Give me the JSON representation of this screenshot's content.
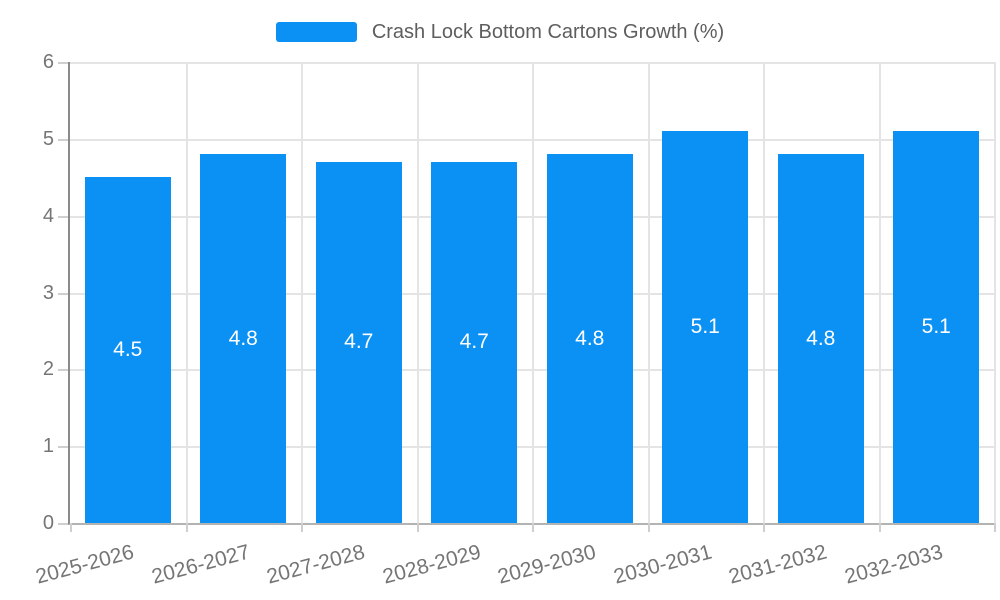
{
  "legend": {
    "label": "Crash Lock Bottom Cartons Growth (%)"
  },
  "chart_data": {
    "type": "bar",
    "title": "Crash Lock Bottom Cartons Growth (%)",
    "categories": [
      "2025-2026",
      "2026-2027",
      "2027-2028",
      "2028-2029",
      "2029-2030",
      "2030-2031",
      "2031-2032",
      "2032-2033"
    ],
    "series": [
      {
        "name": "Crash Lock Bottom Cartons Growth (%)",
        "values": [
          4.5,
          4.8,
          4.7,
          4.7,
          4.8,
          5.1,
          4.8,
          5.1
        ]
      }
    ],
    "values": [
      4.5,
      4.8,
      4.7,
      4.7,
      4.8,
      5.1,
      4.8,
      5.1
    ],
    "bar_labels": [
      "4.5",
      "4.8",
      "4.7",
      "4.7",
      "4.8",
      "5.1",
      "4.8",
      "5.1"
    ],
    "xlabel": "",
    "ylabel": "",
    "ylim": [
      0,
      6
    ],
    "yticks": [
      0,
      1,
      2,
      3,
      4,
      5,
      6
    ],
    "grid": true,
    "legend_position": "top",
    "x_label_rotation_deg": -15,
    "colors": {
      "bar": "#0b90f4",
      "bar_value_label": "#ffffff",
      "axis_text": "#757575",
      "legend_text": "#5e5e5e",
      "gridline": "#e4e4e4",
      "y_axis_line": "#8a8a8a",
      "x_axis_line": "#b3b3b3"
    }
  }
}
